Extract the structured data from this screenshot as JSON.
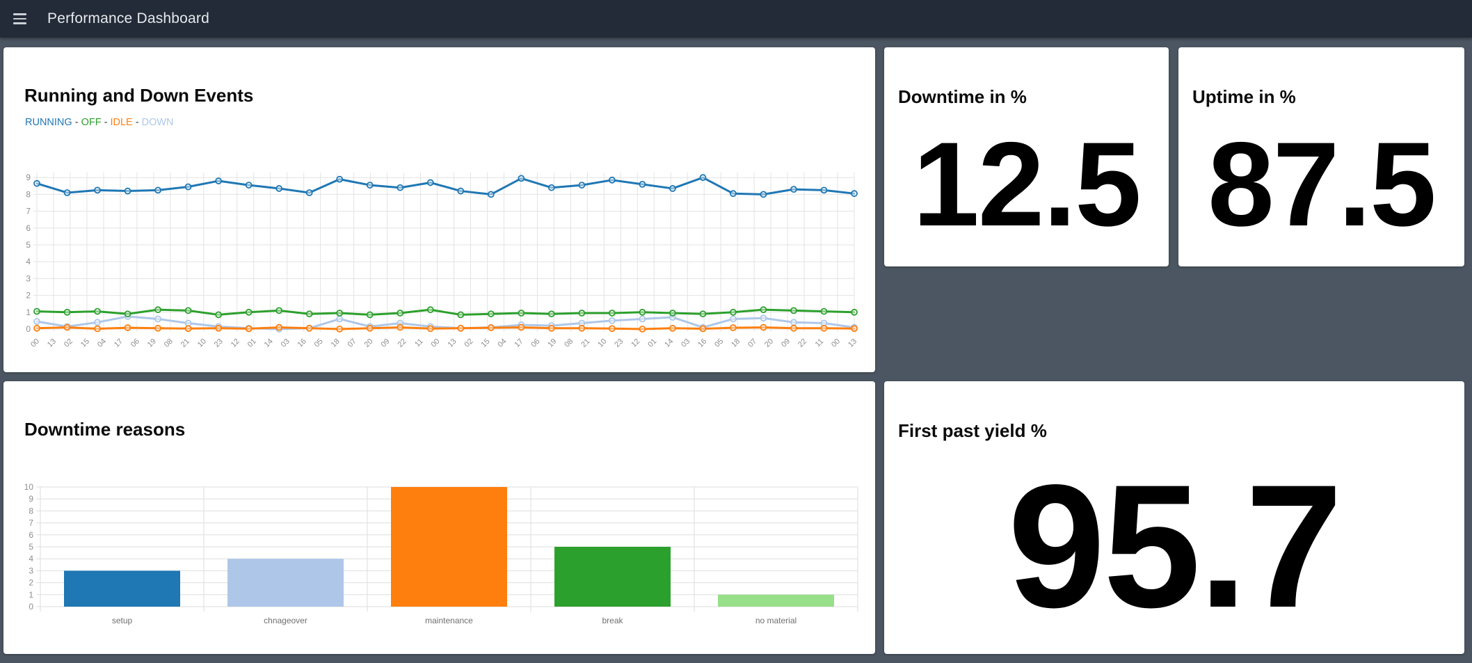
{
  "navbar": {
    "title": "Performance Dashboard"
  },
  "cards": {
    "events": {
      "title": "Running and Down Events",
      "legend_separator": "-",
      "legend": [
        {
          "label": "RUNNING",
          "color": "#1f77b4"
        },
        {
          "label": "OFF",
          "color": "#2ca02c"
        },
        {
          "label": "IDLE",
          "color": "#ff7f0e"
        },
        {
          "label": "DOWN",
          "color": "#aec7e8"
        }
      ]
    },
    "downtime": {
      "title": "Downtime in %",
      "value": "12.5"
    },
    "uptime": {
      "title": "Uptime in %",
      "value": "87.5"
    },
    "reasons": {
      "title": "Downtime reasons"
    },
    "yield": {
      "title": "First past yield %",
      "value": "95.7"
    }
  },
  "chart_data": [
    {
      "id": "events",
      "type": "line",
      "title": "Running and Down Events",
      "ylim": [
        0,
        9.3
      ],
      "y_ticks": [
        0,
        1,
        2,
        3,
        4,
        5,
        6,
        7,
        8,
        9
      ],
      "grid": true,
      "legend_position": "top-left-text",
      "x_tick_labels": [
        "00",
        "13",
        "02",
        "15",
        "04",
        "17",
        "06",
        "19",
        "08",
        "21",
        "10",
        "23",
        "12",
        "01",
        "14",
        "03",
        "16",
        "05",
        "18",
        "07",
        "20",
        "09",
        "22",
        "11",
        "00",
        "13",
        "02",
        "15",
        "04",
        "17",
        "06",
        "19",
        "08",
        "21",
        "10",
        "23",
        "12",
        "01",
        "14",
        "03",
        "16",
        "05",
        "18",
        "07",
        "20",
        "09",
        "22",
        "11",
        "00",
        "13"
      ],
      "series": [
        {
          "name": "RUNNING",
          "color": "#1f77b4",
          "values": [
            8.65,
            8.1,
            8.25,
            8.2,
            8.25,
            8.45,
            8.8,
            8.55,
            8.35,
            8.1,
            8.9,
            8.55,
            8.4,
            8.7,
            8.2,
            8.0,
            8.95,
            8.4,
            8.55,
            8.85,
            8.6,
            8.35,
            9.0,
            8.05,
            8.0,
            8.3,
            8.25,
            8.05
          ]
        },
        {
          "name": "OFF",
          "color": "#2ca02c",
          "values": [
            1.05,
            1.0,
            1.05,
            0.9,
            1.15,
            1.1,
            0.85,
            1.0,
            1.1,
            0.9,
            0.95,
            0.85,
            0.95,
            1.15,
            0.85,
            0.9,
            0.95,
            0.9,
            0.95,
            0.95,
            1.0,
            0.95,
            0.9,
            1.0,
            1.15,
            1.1,
            1.05,
            1.0
          ]
        },
        {
          "name": "IDLE",
          "color": "#ff7f0e",
          "values": [
            0.05,
            0.1,
            0.02,
            0.08,
            0.05,
            0.03,
            0.05,
            0.02,
            0.1,
            0.05,
            0.0,
            0.05,
            0.1,
            0.03,
            0.05,
            0.08,
            0.1,
            0.05,
            0.05,
            0.03,
            0.0,
            0.05,
            0.02,
            0.08,
            0.1,
            0.05,
            0.05,
            0.03
          ]
        },
        {
          "name": "DOWN",
          "color": "#aec7e8",
          "values": [
            0.45,
            0.15,
            0.4,
            0.75,
            0.6,
            0.35,
            0.15,
            0.05,
            0.0,
            0.05,
            0.6,
            0.15,
            0.35,
            0.15,
            0.05,
            0.1,
            0.25,
            0.2,
            0.35,
            0.5,
            0.6,
            0.7,
            0.1,
            0.6,
            0.65,
            0.4,
            0.35,
            0.1
          ]
        }
      ]
    },
    {
      "id": "reasons",
      "type": "bar",
      "title": "Downtime reasons",
      "ylim": [
        0,
        10
      ],
      "y_ticks": [
        0,
        1,
        2,
        3,
        4,
        5,
        6,
        7,
        8,
        9,
        10
      ],
      "grid": true,
      "categories": [
        "setup",
        "chnageover",
        "maintenance",
        "break",
        "no material"
      ],
      "values": [
        3,
        4,
        10,
        5,
        1
      ],
      "colors": [
        "#1f77b4",
        "#aec7e8",
        "#ff7f0e",
        "#2ca02c",
        "#98df8a"
      ]
    }
  ]
}
